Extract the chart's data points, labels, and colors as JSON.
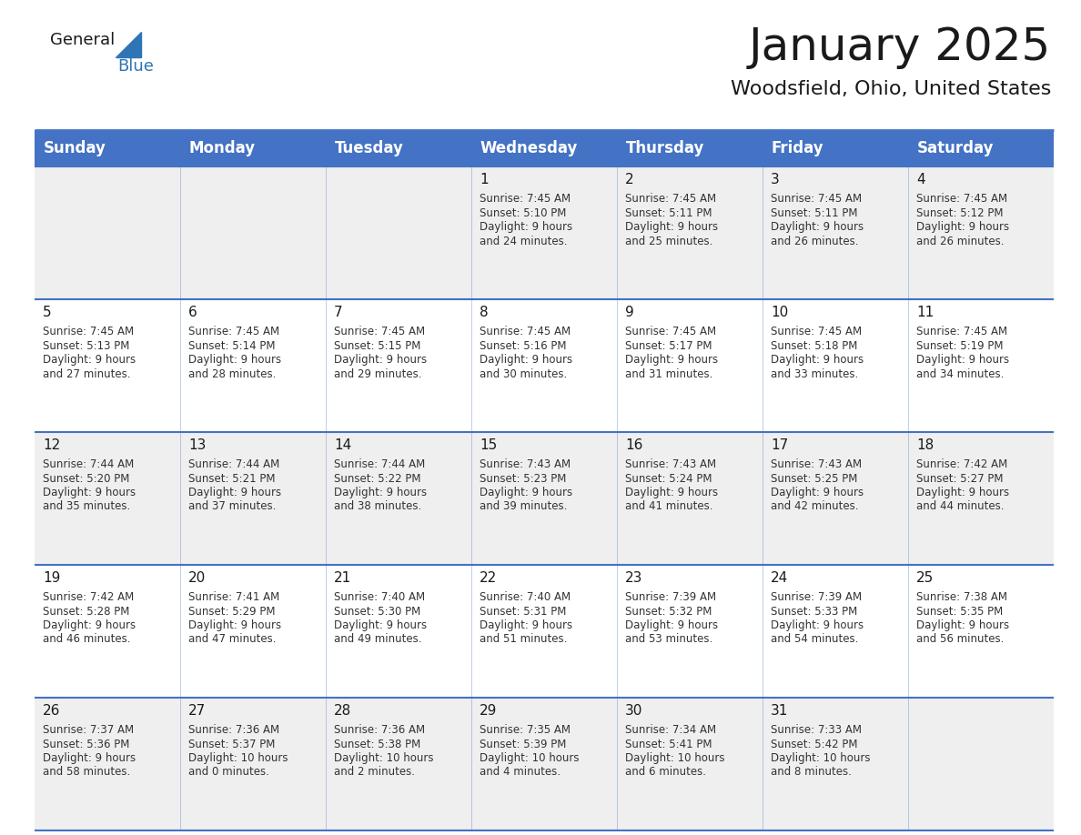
{
  "title": "January 2025",
  "subtitle": "Woodsfield, Ohio, United States",
  "header_bg_color": "#4472C4",
  "header_text_color": "#FFFFFF",
  "cell_bg_color_row0": "#EFEFEF",
  "cell_bg_color_row1": "#FFFFFF",
  "cell_bg_color_row2": "#EFEFEF",
  "cell_bg_color_row3": "#FFFFFF",
  "cell_bg_color_row4": "#EFEFEF",
  "grid_line_color": "#4472C4",
  "day_names": [
    "Sunday",
    "Monday",
    "Tuesday",
    "Wednesday",
    "Thursday",
    "Friday",
    "Saturday"
  ],
  "days": [
    {
      "day": 1,
      "col": 3,
      "row": 0,
      "sunrise": "7:45 AM",
      "sunset": "5:10 PM",
      "daylight_h": "9 hours",
      "daylight_m": "and 24 minutes."
    },
    {
      "day": 2,
      "col": 4,
      "row": 0,
      "sunrise": "7:45 AM",
      "sunset": "5:11 PM",
      "daylight_h": "9 hours",
      "daylight_m": "and 25 minutes."
    },
    {
      "day": 3,
      "col": 5,
      "row": 0,
      "sunrise": "7:45 AM",
      "sunset": "5:11 PM",
      "daylight_h": "9 hours",
      "daylight_m": "and 26 minutes."
    },
    {
      "day": 4,
      "col": 6,
      "row": 0,
      "sunrise": "7:45 AM",
      "sunset": "5:12 PM",
      "daylight_h": "9 hours",
      "daylight_m": "and 26 minutes."
    },
    {
      "day": 5,
      "col": 0,
      "row": 1,
      "sunrise": "7:45 AM",
      "sunset": "5:13 PM",
      "daylight_h": "9 hours",
      "daylight_m": "and 27 minutes."
    },
    {
      "day": 6,
      "col": 1,
      "row": 1,
      "sunrise": "7:45 AM",
      "sunset": "5:14 PM",
      "daylight_h": "9 hours",
      "daylight_m": "and 28 minutes."
    },
    {
      "day": 7,
      "col": 2,
      "row": 1,
      "sunrise": "7:45 AM",
      "sunset": "5:15 PM",
      "daylight_h": "9 hours",
      "daylight_m": "and 29 minutes."
    },
    {
      "day": 8,
      "col": 3,
      "row": 1,
      "sunrise": "7:45 AM",
      "sunset": "5:16 PM",
      "daylight_h": "9 hours",
      "daylight_m": "and 30 minutes."
    },
    {
      "day": 9,
      "col": 4,
      "row": 1,
      "sunrise": "7:45 AM",
      "sunset": "5:17 PM",
      "daylight_h": "9 hours",
      "daylight_m": "and 31 minutes."
    },
    {
      "day": 10,
      "col": 5,
      "row": 1,
      "sunrise": "7:45 AM",
      "sunset": "5:18 PM",
      "daylight_h": "9 hours",
      "daylight_m": "and 33 minutes."
    },
    {
      "day": 11,
      "col": 6,
      "row": 1,
      "sunrise": "7:45 AM",
      "sunset": "5:19 PM",
      "daylight_h": "9 hours",
      "daylight_m": "and 34 minutes."
    },
    {
      "day": 12,
      "col": 0,
      "row": 2,
      "sunrise": "7:44 AM",
      "sunset": "5:20 PM",
      "daylight_h": "9 hours",
      "daylight_m": "and 35 minutes."
    },
    {
      "day": 13,
      "col": 1,
      "row": 2,
      "sunrise": "7:44 AM",
      "sunset": "5:21 PM",
      "daylight_h": "9 hours",
      "daylight_m": "and 37 minutes."
    },
    {
      "day": 14,
      "col": 2,
      "row": 2,
      "sunrise": "7:44 AM",
      "sunset": "5:22 PM",
      "daylight_h": "9 hours",
      "daylight_m": "and 38 minutes."
    },
    {
      "day": 15,
      "col": 3,
      "row": 2,
      "sunrise": "7:43 AM",
      "sunset": "5:23 PM",
      "daylight_h": "9 hours",
      "daylight_m": "and 39 minutes."
    },
    {
      "day": 16,
      "col": 4,
      "row": 2,
      "sunrise": "7:43 AM",
      "sunset": "5:24 PM",
      "daylight_h": "9 hours",
      "daylight_m": "and 41 minutes."
    },
    {
      "day": 17,
      "col": 5,
      "row": 2,
      "sunrise": "7:43 AM",
      "sunset": "5:25 PM",
      "daylight_h": "9 hours",
      "daylight_m": "and 42 minutes."
    },
    {
      "day": 18,
      "col": 6,
      "row": 2,
      "sunrise": "7:42 AM",
      "sunset": "5:27 PM",
      "daylight_h": "9 hours",
      "daylight_m": "and 44 minutes."
    },
    {
      "day": 19,
      "col": 0,
      "row": 3,
      "sunrise": "7:42 AM",
      "sunset": "5:28 PM",
      "daylight_h": "9 hours",
      "daylight_m": "and 46 minutes."
    },
    {
      "day": 20,
      "col": 1,
      "row": 3,
      "sunrise": "7:41 AM",
      "sunset": "5:29 PM",
      "daylight_h": "9 hours",
      "daylight_m": "and 47 minutes."
    },
    {
      "day": 21,
      "col": 2,
      "row": 3,
      "sunrise": "7:40 AM",
      "sunset": "5:30 PM",
      "daylight_h": "9 hours",
      "daylight_m": "and 49 minutes."
    },
    {
      "day": 22,
      "col": 3,
      "row": 3,
      "sunrise": "7:40 AM",
      "sunset": "5:31 PM",
      "daylight_h": "9 hours",
      "daylight_m": "and 51 minutes."
    },
    {
      "day": 23,
      "col": 4,
      "row": 3,
      "sunrise": "7:39 AM",
      "sunset": "5:32 PM",
      "daylight_h": "9 hours",
      "daylight_m": "and 53 minutes."
    },
    {
      "day": 24,
      "col": 5,
      "row": 3,
      "sunrise": "7:39 AM",
      "sunset": "5:33 PM",
      "daylight_h": "9 hours",
      "daylight_m": "and 54 minutes."
    },
    {
      "day": 25,
      "col": 6,
      "row": 3,
      "sunrise": "7:38 AM",
      "sunset": "5:35 PM",
      "daylight_h": "9 hours",
      "daylight_m": "and 56 minutes."
    },
    {
      "day": 26,
      "col": 0,
      "row": 4,
      "sunrise": "7:37 AM",
      "sunset": "5:36 PM",
      "daylight_h": "9 hours",
      "daylight_m": "and 58 minutes."
    },
    {
      "day": 27,
      "col": 1,
      "row": 4,
      "sunrise": "7:36 AM",
      "sunset": "5:37 PM",
      "daylight_h": "10 hours",
      "daylight_m": "and 0 minutes."
    },
    {
      "day": 28,
      "col": 2,
      "row": 4,
      "sunrise": "7:36 AM",
      "sunset": "5:38 PM",
      "daylight_h": "10 hours",
      "daylight_m": "and 2 minutes."
    },
    {
      "day": 29,
      "col": 3,
      "row": 4,
      "sunrise": "7:35 AM",
      "sunset": "5:39 PM",
      "daylight_h": "10 hours",
      "daylight_m": "and 4 minutes."
    },
    {
      "day": 30,
      "col": 4,
      "row": 4,
      "sunrise": "7:34 AM",
      "sunset": "5:41 PM",
      "daylight_h": "10 hours",
      "daylight_m": "and 6 minutes."
    },
    {
      "day": 31,
      "col": 5,
      "row": 4,
      "sunrise": "7:33 AM",
      "sunset": "5:42 PM",
      "daylight_h": "10 hours",
      "daylight_m": "and 8 minutes."
    }
  ],
  "num_rows": 5,
  "logo_triangle_color": "#2E75B6",
  "text_color_dark": "#1a1a1a",
  "cell_text_color": "#333333",
  "title_fontsize": 36,
  "subtitle_fontsize": 16,
  "header_fontsize": 12,
  "day_num_fontsize": 11,
  "body_fontsize": 8.5
}
